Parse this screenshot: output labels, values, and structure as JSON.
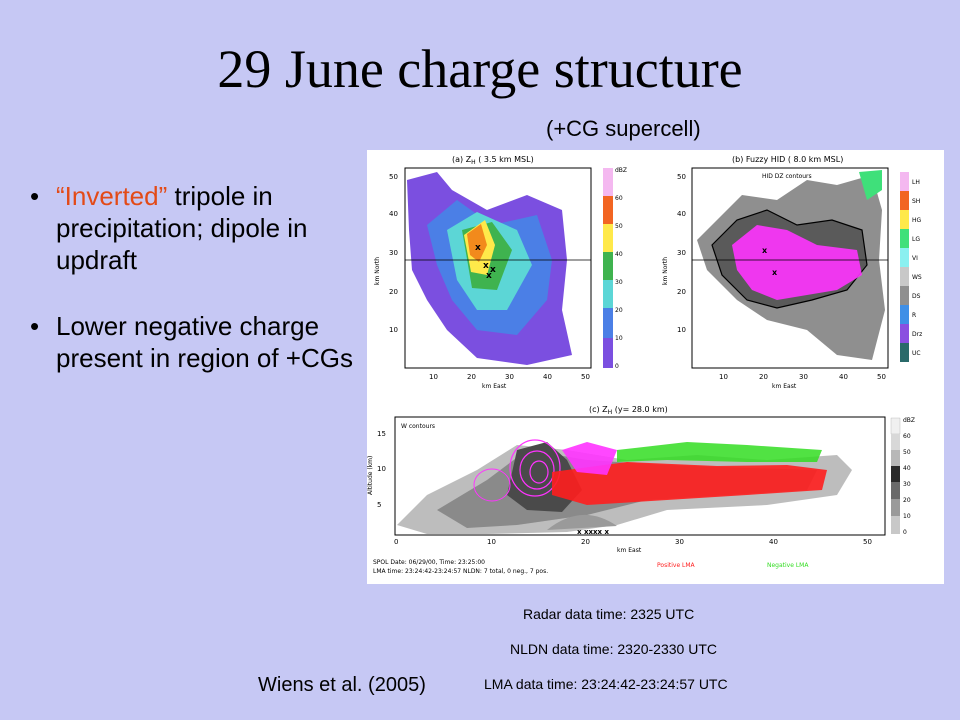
{
  "slide": {
    "title": "29 June charge structure",
    "subtitle": "(+CG supercell)",
    "bullets": [
      {
        "highlight": "“Inverted”",
        "text": " tripole in precipitation; dipole in updraft"
      },
      {
        "highlight": "",
        "text": "Lower negative charge present in region of +CGs"
      }
    ],
    "citation": "Wiens et al. (2005)",
    "data_times": {
      "radar": "Radar data time: 2325 UTC",
      "nldn": "NLDN data time: 2320-2330 UTC",
      "lma": "LMA data time: 23:24:42-23:24:57 UTC"
    }
  },
  "figure": {
    "panel_a": {
      "title": "(a) Z",
      "subscript": "H",
      "title_rest": " (  3.5 km MSL)",
      "ylabel": "km North",
      "xlabel": "km East",
      "yticks": [
        "50",
        "40",
        "30",
        "20",
        "10"
      ],
      "xticks": [
        "10",
        "20",
        "30",
        "40",
        "50"
      ],
      "colorbar_unit": "dBZ",
      "colorbar_ticks": [
        "60",
        "50",
        "40",
        "30",
        "20",
        "10",
        "0"
      ]
    },
    "panel_b": {
      "title": "(b) Fuzzy HID (  8.0 km MSL)",
      "contour_label": "HID DZ contours",
      "ylabel": "km North",
      "xlabel": "km East",
      "yticks": [
        "50",
        "40",
        "30",
        "20",
        "10"
      ],
      "xticks": [
        "10",
        "20",
        "30",
        "40",
        "50"
      ],
      "legend": [
        "LH",
        "SH",
        "HG",
        "LG",
        "VI",
        "WS",
        "DS",
        "R",
        "Drz",
        "UC"
      ]
    },
    "panel_c": {
      "title": "(c) Z",
      "subscript": "H",
      "title_rest": " (y=   28.0 km)",
      "contour_label": "W contours",
      "ylabel": "Altitude (km)",
      "xlabel": "km East",
      "yticks": [
        "15",
        "10",
        "5"
      ],
      "xticks": [
        "0",
        "10",
        "20",
        "30",
        "40",
        "50"
      ],
      "colorbar_unit": "dBZ",
      "colorbar_ticks": [
        "60",
        "50",
        "40",
        "30",
        "20",
        "10",
        "0"
      ]
    },
    "footer": {
      "line1": "SPOL      Date: 06/29/00, Time:  23:25:00",
      "line2": "LMA time: 23:24:42-23:24:57 NLDN: 7 total, 0 neg., 7 pos.",
      "positive": "Positive LMA",
      "negative": "Negative LMA"
    }
  },
  "colors": {
    "background": "#c6c8f4",
    "highlight": "#e34a17",
    "positive_lma": "#ff1e1e",
    "negative_lma": "#33dd22",
    "lma_magenta": "#ff33ff"
  }
}
